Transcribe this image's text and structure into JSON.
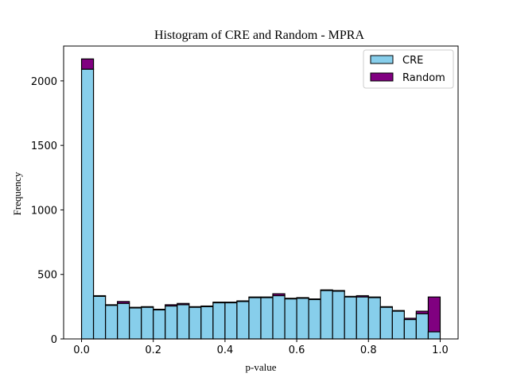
{
  "chart_data": {
    "type": "bar",
    "title": "Histogram of CRE and Random - MPRA",
    "xlabel": "p-value",
    "ylabel": "Frequency",
    "xlim": [
      -0.05,
      1.05
    ],
    "ylim": [
      0,
      2270
    ],
    "xticks": [
      "0.0",
      "0.2",
      "0.4",
      "0.6",
      "0.8",
      "1.0"
    ],
    "yticks": [
      "0",
      "500",
      "1000",
      "1500",
      "2000"
    ],
    "bin_edges": [
      0.0,
      0.0333,
      0.0667,
      0.1,
      0.1333,
      0.1667,
      0.2,
      0.2333,
      0.2667,
      0.3,
      0.3333,
      0.3667,
      0.4,
      0.4333,
      0.4667,
      0.5,
      0.5333,
      0.5667,
      0.6,
      0.6333,
      0.6667,
      0.7,
      0.7333,
      0.7667,
      0.8,
      0.8333,
      0.8667,
      0.9,
      0.9333,
      0.9667,
      1.0
    ],
    "stacked": true,
    "legend_position": "top-right",
    "series": [
      {
        "name": "CRE",
        "color": "#87CEEB",
        "values": [
          2090,
          330,
          260,
          275,
          240,
          245,
          225,
          255,
          265,
          245,
          250,
          280,
          280,
          290,
          320,
          320,
          335,
          310,
          315,
          305,
          375,
          370,
          325,
          325,
          320,
          245,
          215,
          150,
          195,
          55
        ]
      },
      {
        "name": "Random",
        "color": "#800080",
        "values": [
          80,
          5,
          5,
          15,
          5,
          5,
          5,
          10,
          10,
          5,
          5,
          5,
          5,
          5,
          5,
          5,
          15,
          5,
          5,
          5,
          5,
          5,
          5,
          10,
          5,
          5,
          5,
          10,
          20,
          270
        ]
      }
    ]
  }
}
